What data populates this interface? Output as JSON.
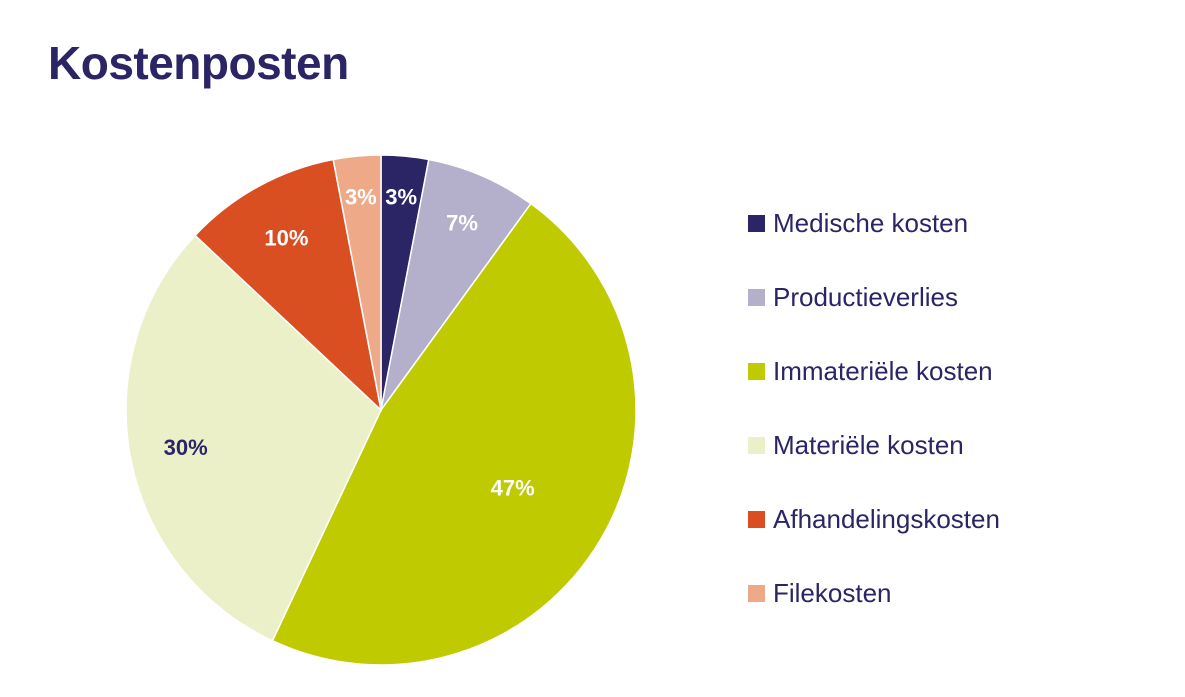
{
  "title": "Kostenposten",
  "chart_data": {
    "type": "pie",
    "title": "Kostenposten",
    "legend_position": "right",
    "slices": [
      {
        "name": "Medische kosten",
        "value": 3,
        "label": "3%",
        "color": "#2b2566",
        "label_color": "#ffffff"
      },
      {
        "name": "Productieverlies",
        "value": 7,
        "label": "7%",
        "color": "#b4afcb",
        "label_color": "#ffffff"
      },
      {
        "name": "Immateriële kosten",
        "value": 47,
        "label": "47%",
        "color": "#bfca00",
        "label_color": "#ffffff"
      },
      {
        "name": "Materiële kosten",
        "value": 30,
        "label": "30%",
        "color": "#ebf0c8",
        "label_color": "#2b2566"
      },
      {
        "name": "Afhandelingskosten",
        "value": 10,
        "label": "10%",
        "color": "#d94f21",
        "label_color": "#ffffff"
      },
      {
        "name": "Filekosten",
        "value": 3,
        "label": "3%",
        "color": "#eeaa88",
        "label_color": "#ffffff"
      }
    ]
  }
}
